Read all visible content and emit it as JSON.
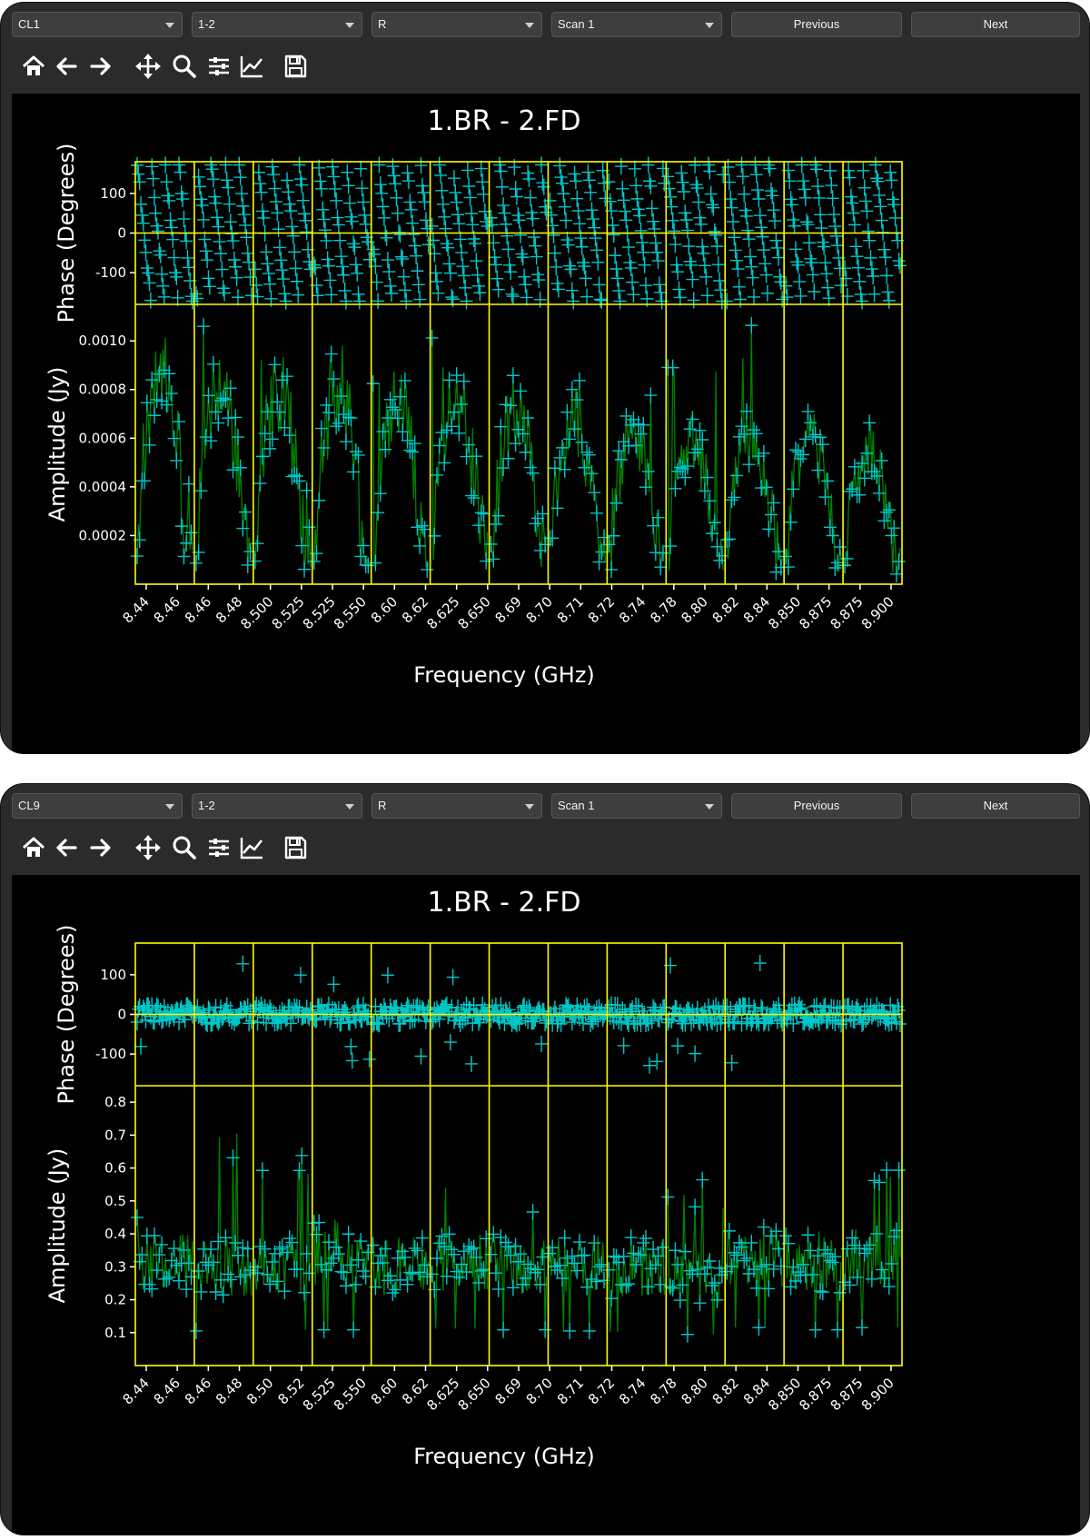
{
  "windows": [
    {
      "controls": {
        "source": "CL1",
        "baseline": "1-2",
        "polarization": "R",
        "scan": "Scan 1",
        "previous_label": "Previous",
        "next_label": "Next"
      },
      "toolbar": [
        "home-icon",
        "back-arrow-icon",
        "forward-arrow-icon",
        "pan-icon",
        "zoom-icon",
        "configure-subplots-icon",
        "edit-axes-icon",
        "save-icon"
      ]
    },
    {
      "controls": {
        "source": "CL9",
        "baseline": "1-2",
        "polarization": "R",
        "scan": "Scan 1",
        "previous_label": "Previous",
        "next_label": "Next"
      },
      "toolbar": [
        "home-icon",
        "back-arrow-icon",
        "forward-arrow-icon",
        "pan-icon",
        "zoom-icon",
        "configure-subplots-icon",
        "edit-axes-icon",
        "save-icon"
      ]
    }
  ],
  "colors": {
    "figure_bg": "#000000",
    "frame": "#ffff00",
    "line": "#008000",
    "marker": "#00c8c8",
    "text": "#ffffff"
  },
  "chart_data": [
    {
      "type": "scatter",
      "title": "1.BR - 2.FD",
      "xlabel": "Frequency (GHz)",
      "subpanels": 13,
      "x_tick_labels": [
        "8.44",
        "8.46",
        "8.46",
        "8.48",
        "8.500",
        "8.525",
        "8.525",
        "8.550",
        "8.60",
        "8.62",
        "8.625",
        "8.650",
        "8.69",
        "8.70",
        "8.71",
        "8.72",
        "8.74",
        "8.78",
        "8.80",
        "8.82",
        "8.84",
        "8.850",
        "8.875",
        "8.875",
        "8.900"
      ],
      "phase": {
        "ylabel": "Phase (Degrees)",
        "ylim": [
          -180,
          180
        ],
        "yticks": [
          100,
          0,
          -100
        ],
        "pattern": "wrapped linear slopes"
      },
      "amplitude": {
        "ylabel": "Amplitude (Jy)",
        "ylim": [
          0,
          0.00115
        ],
        "yticks": [
          "0.0010",
          "0.0008",
          "0.0006",
          "0.0004",
          "0.0002"
        ],
        "panel_mean": [
          0.00068,
          0.00066,
          0.00064,
          0.00066,
          0.0006,
          0.00062,
          0.00057,
          0.00054,
          0.0005,
          0.00046,
          0.0005,
          0.00048,
          0.00044
        ],
        "panel_peak": [
          0.00102,
          0.00108,
          0.00094,
          0.0011,
          0.00084,
          0.00104,
          0.00094,
          0.00088,
          0.00082,
          0.00096,
          0.00108,
          0.00082,
          0.00078
        ]
      }
    },
    {
      "type": "scatter",
      "title": "1.BR - 2.FD",
      "xlabel": "Frequency (GHz)",
      "subpanels": 13,
      "x_tick_labels": [
        "8.44",
        "8.46",
        "8.46",
        "8.48",
        "8.50",
        "8.52",
        "8.525",
        "8.550",
        "8.60",
        "8.62",
        "8.625",
        "8.650",
        "8.69",
        "8.70",
        "8.71",
        "8.72",
        "8.74",
        "8.78",
        "8.80",
        "8.82",
        "8.84",
        "8.850",
        "8.875",
        "8.875",
        "8.900"
      ],
      "phase": {
        "ylabel": "Phase (Degrees)",
        "ylim": [
          -180,
          180
        ],
        "yticks": [
          100,
          0,
          -100
        ],
        "pattern": "scatter around 0"
      },
      "amplitude": {
        "ylabel": "Amplitude (Jy)",
        "ylim": [
          0,
          0.85
        ],
        "yticks": [
          "0.8",
          "0.7",
          "0.6",
          "0.5",
          "0.4",
          "0.3",
          "0.2",
          "0.1"
        ],
        "panel_mean": [
          0.31,
          0.3,
          0.31,
          0.31,
          0.3,
          0.32,
          0.31,
          0.3,
          0.29,
          0.27,
          0.33,
          0.31,
          0.33
        ],
        "panel_peak": [
          0.45,
          0.78,
          0.65,
          0.5,
          0.4,
          0.54,
          0.52,
          0.46,
          0.45,
          0.58,
          0.5,
          0.42,
          0.62
        ]
      }
    }
  ]
}
